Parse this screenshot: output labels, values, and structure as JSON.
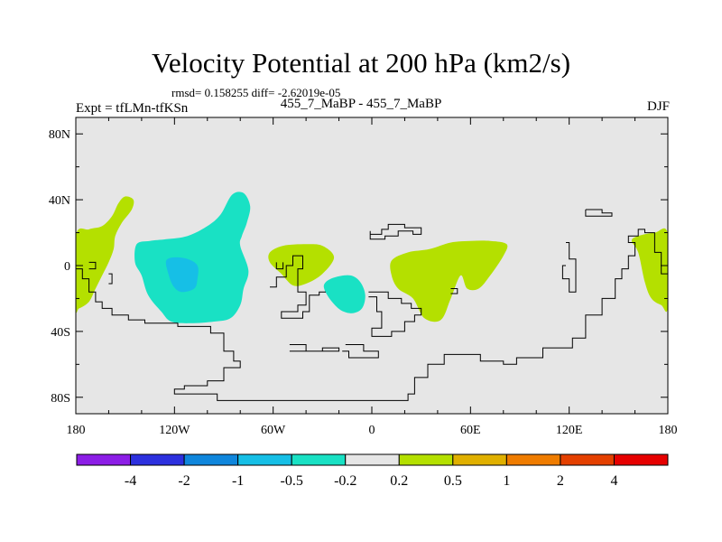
{
  "chart_data": {
    "type": "contour-map",
    "title": "Velocity Potential at 200 hPa (km2/s)",
    "stats_text": "rmsd= 0.158255 diff= -2.62019e-05",
    "left_label": "Expt = tfLMn-tfKSn",
    "center_label": "455_7_MaBP - 455_7_MaBP",
    "right_label": "DJF",
    "x_axis": {
      "range": [
        -180,
        180
      ],
      "ticks": [
        -180,
        -120,
        -60,
        0,
        60,
        120,
        180
      ],
      "tick_labels": [
        "180",
        "120W",
        "60W",
        "0",
        "60E",
        "120E",
        "180"
      ]
    },
    "y_axis": {
      "range": [
        -90,
        90
      ],
      "ticks": [
        80,
        40,
        0,
        -40,
        -80
      ],
      "tick_labels": [
        "80N",
        "40N",
        "0",
        "40S",
        "80S"
      ]
    },
    "colorbar": {
      "colors": [
        "#8c1ee6",
        "#2d30de",
        "#0f86dc",
        "#16bfe6",
        "#19e1c4",
        "#e6e6e6",
        "#b4e000",
        "#e0b000",
        "#ef7c00",
        "#e44000",
        "#e60000"
      ],
      "labels": [
        "-4",
        "-2",
        "-1",
        "-0.5",
        "-0.2",
        "0.2",
        "0.5",
        "1",
        "2",
        "4"
      ]
    },
    "background_color": "#e6e6e6",
    "regions": [
      {
        "level": "0.2 to 0.5",
        "color": "#b4e000",
        "points": [
          [
            -180,
            18
          ],
          [
            -172,
            22
          ],
          [
            -164,
            24
          ],
          [
            -158,
            30
          ],
          [
            -154,
            38
          ],
          [
            -150,
            42
          ],
          [
            -145,
            40
          ],
          [
            -146,
            34
          ],
          [
            -152,
            26
          ],
          [
            -156,
            18
          ],
          [
            -157,
            10
          ],
          [
            -160,
            2
          ],
          [
            -164,
            -6
          ],
          [
            -168,
            -14
          ],
          [
            -172,
            -22
          ],
          [
            -178,
            -26
          ],
          [
            -180,
            -25
          ]
        ]
      },
      {
        "level": "0.2 to 0.5",
        "color": "#b4e000",
        "points": [
          [
            -62,
            8
          ],
          [
            -54,
            12
          ],
          [
            -40,
            13
          ],
          [
            -30,
            12
          ],
          [
            -23,
            5
          ],
          [
            -30,
            -5
          ],
          [
            -40,
            -11
          ],
          [
            -48,
            -12
          ],
          [
            -55,
            -5
          ],
          [
            -62,
            2
          ]
        ]
      },
      {
        "level": "0.2 to 0.5",
        "color": "#b4e000",
        "points": [
          [
            12,
            3
          ],
          [
            22,
            8
          ],
          [
            35,
            10
          ],
          [
            48,
            14
          ],
          [
            60,
            15
          ],
          [
            72,
            15
          ],
          [
            82,
            13
          ],
          [
            80,
            6
          ],
          [
            72,
            -6
          ],
          [
            65,
            -14
          ],
          [
            58,
            -14
          ],
          [
            54,
            -6
          ],
          [
            48,
            -20
          ],
          [
            42,
            -33
          ],
          [
            32,
            -32
          ],
          [
            25,
            -20
          ],
          [
            16,
            -14
          ],
          [
            12,
            -6
          ]
        ]
      },
      {
        "level": "0.2 to 0.5",
        "color": "#b4e000",
        "points": [
          [
            180,
            19
          ],
          [
            172,
            20
          ],
          [
            162,
            18
          ],
          [
            158,
            15
          ],
          [
            162,
            8
          ],
          [
            166,
            -10
          ],
          [
            170,
            -20
          ],
          [
            176,
            -24
          ],
          [
            180,
            -25
          ]
        ]
      },
      {
        "level": "-0.5 to -0.2",
        "color": "#19e1c4",
        "points": [
          [
            -143,
            13
          ],
          [
            -135,
            15
          ],
          [
            -125,
            16
          ],
          [
            -112,
            18
          ],
          [
            -100,
            24
          ],
          [
            -92,
            31
          ],
          [
            -85,
            43
          ],
          [
            -78,
            44
          ],
          [
            -74,
            36
          ],
          [
            -76,
            26
          ],
          [
            -79,
            18
          ],
          [
            -80,
            12
          ],
          [
            -75,
            -3
          ],
          [
            -78,
            -14
          ],
          [
            -80,
            -24
          ],
          [
            -86,
            -32
          ],
          [
            -96,
            -34
          ],
          [
            -110,
            -35
          ],
          [
            -122,
            -34
          ],
          [
            -128,
            -28
          ],
          [
            -136,
            -18
          ],
          [
            -140,
            -6
          ],
          [
            -144,
            2
          ]
        ]
      },
      {
        "level": "-1 to -0.5",
        "color": "#16bfe6",
        "points": [
          [
            -125,
            3
          ],
          [
            -120,
            5
          ],
          [
            -112,
            4
          ],
          [
            -106,
            0
          ],
          [
            -106,
            -8
          ],
          [
            -108,
            -14
          ],
          [
            -116,
            -16
          ],
          [
            -121,
            -12
          ],
          [
            -124,
            -4
          ]
        ]
      },
      {
        "level": "-0.5 to -0.2",
        "color": "#19e1c4",
        "points": [
          [
            -28,
            -10
          ],
          [
            -22,
            -7
          ],
          [
            -13,
            -6
          ],
          [
            -7,
            -10
          ],
          [
            -4,
            -18
          ],
          [
            -6,
            -26
          ],
          [
            -12,
            -29
          ],
          [
            -19,
            -27
          ],
          [
            -25,
            -21
          ],
          [
            -29,
            -14
          ]
        ]
      }
    ],
    "coastlines": [
      {
        "name": "africa-eurasia",
        "points": [
          [
            -1,
            21
          ],
          [
            -1,
            19
          ],
          [
            6,
            19
          ],
          [
            6,
            22
          ],
          [
            10,
            22
          ],
          [
            10,
            25
          ],
          [
            20,
            25
          ],
          [
            20,
            23
          ],
          [
            30,
            23
          ],
          [
            30,
            19
          ],
          [
            25,
            19
          ],
          [
            25,
            21
          ],
          [
            16,
            21
          ],
          [
            16,
            18
          ],
          [
            8,
            18
          ],
          [
            8,
            16
          ],
          [
            -1,
            16
          ],
          [
            -1,
            21
          ]
        ]
      },
      {
        "name": "south-america",
        "points": [
          [
            -62,
            -13
          ],
          [
            -58,
            -13
          ],
          [
            -58,
            -7
          ],
          [
            -52,
            -7
          ],
          [
            -52,
            0
          ],
          [
            -48,
            0
          ],
          [
            -48,
            6
          ],
          [
            -42,
            6
          ],
          [
            -42,
            -2
          ],
          [
            -45,
            -2
          ],
          [
            -45,
            -16
          ],
          [
            -40,
            -16
          ],
          [
            -40,
            -24
          ],
          [
            -45,
            -24
          ],
          [
            -45,
            -28
          ],
          [
            -55,
            -28
          ],
          [
            -55,
            -32
          ],
          [
            -42,
            -32
          ],
          [
            -42,
            -28
          ],
          [
            -38,
            -28
          ],
          [
            -38,
            -18
          ],
          [
            -32,
            -18
          ],
          [
            -32,
            -16
          ],
          [
            -28,
            -16
          ]
        ]
      },
      {
        "name": "africa",
        "points": [
          [
            -2,
            -16
          ],
          [
            10,
            -16
          ],
          [
            10,
            -20
          ],
          [
            18,
            -20
          ],
          [
            18,
            -23
          ],
          [
            24,
            -23
          ],
          [
            24,
            -26
          ],
          [
            30,
            -26
          ],
          [
            30,
            -30
          ],
          [
            26,
            -30
          ],
          [
            26,
            -34
          ],
          [
            20,
            -34
          ],
          [
            20,
            -40
          ],
          [
            12,
            -40
          ],
          [
            12,
            -43
          ],
          [
            0,
            -43
          ],
          [
            0,
            -38
          ],
          [
            6,
            -38
          ],
          [
            6,
            -28
          ],
          [
            3,
            -28
          ],
          [
            3,
            -19
          ],
          [
            -2,
            -19
          ]
        ]
      },
      {
        "name": "north-america-west",
        "points": [
          [
            -180,
            -2
          ],
          [
            -176,
            -2
          ],
          [
            -176,
            -8
          ],
          [
            -172,
            -8
          ],
          [
            -172,
            -16
          ],
          [
            -168,
            -16
          ],
          [
            -168,
            -22
          ],
          [
            -164,
            -22
          ],
          [
            -164,
            -26
          ],
          [
            -158,
            -26
          ],
          [
            -158,
            -30
          ],
          [
            -148,
            -30
          ],
          [
            -148,
            -33
          ],
          [
            -138,
            -33
          ],
          [
            -138,
            -35
          ],
          [
            -118,
            -35
          ],
          [
            -118,
            -37
          ],
          [
            -98,
            -37
          ],
          [
            -98,
            -41
          ],
          [
            -90,
            -41
          ],
          [
            -90,
            -52
          ],
          [
            -84,
            -52
          ],
          [
            -84,
            -58
          ],
          [
            -80,
            -58
          ],
          [
            -80,
            -62
          ],
          [
            -90,
            -62
          ],
          [
            -90,
            -70
          ],
          [
            -100,
            -70
          ],
          [
            -100,
            -73
          ],
          [
            -114,
            -73
          ],
          [
            -114,
            -75
          ],
          [
            -120,
            -75
          ],
          [
            -120,
            -78
          ],
          [
            -94,
            -78
          ],
          [
            -94,
            -82
          ],
          [
            22,
            -82
          ],
          [
            22,
            -78
          ],
          [
            26,
            -78
          ],
          [
            26,
            -68
          ],
          [
            34,
            -68
          ],
          [
            34,
            -60
          ],
          [
            44,
            -60
          ],
          [
            44,
            -54
          ],
          [
            66,
            -54
          ],
          [
            66,
            -58
          ],
          [
            80,
            -58
          ],
          [
            80,
            -60
          ],
          [
            88,
            -60
          ],
          [
            88,
            -56
          ],
          [
            104,
            -56
          ],
          [
            104,
            -50
          ],
          [
            122,
            -50
          ],
          [
            122,
            -44
          ],
          [
            130,
            -44
          ],
          [
            130,
            -30
          ],
          [
            140,
            -30
          ],
          [
            140,
            -20
          ],
          [
            148,
            -20
          ],
          [
            148,
            -8
          ],
          [
            152,
            -8
          ],
          [
            152,
            -2
          ],
          [
            156,
            -2
          ],
          [
            156,
            6
          ],
          [
            160,
            6
          ],
          [
            160,
            14
          ],
          [
            156,
            14
          ],
          [
            156,
            18
          ],
          [
            162,
            18
          ],
          [
            162,
            22
          ],
          [
            166,
            22
          ],
          [
            166,
            20
          ],
          [
            172,
            20
          ],
          [
            172,
            8
          ],
          [
            176,
            8
          ],
          [
            176,
            -5
          ],
          [
            180,
            -5
          ]
        ]
      },
      {
        "name": "caribbean",
        "points": [
          [
            -160,
            -5
          ],
          [
            -158,
            -5
          ],
          [
            -158,
            -11
          ],
          [
            -160,
            -11
          ]
        ]
      },
      {
        "name": "central-america",
        "points": [
          [
            -58,
            2
          ],
          [
            -58,
            -2
          ],
          [
            -54,
            -2
          ],
          [
            -54,
            2
          ]
        ]
      },
      {
        "name": "south-pacific-island",
        "points": [
          [
            -172,
            2
          ],
          [
            -168,
            2
          ],
          [
            -168,
            -2
          ],
          [
            -172,
            -2
          ]
        ]
      },
      {
        "name": "africa-east",
        "points": [
          [
            118,
            14
          ],
          [
            120,
            14
          ],
          [
            120,
            4
          ],
          [
            124,
            4
          ],
          [
            124,
            -16
          ],
          [
            120,
            -16
          ],
          [
            120,
            -8
          ],
          [
            116,
            -8
          ],
          [
            116,
            0
          ],
          [
            118,
            0
          ]
        ]
      },
      {
        "name": "japan",
        "points": [
          [
            130,
            34
          ],
          [
            140,
            34
          ],
          [
            140,
            32
          ],
          [
            146,
            32
          ],
          [
            146,
            30
          ],
          [
            130,
            30
          ],
          [
            130,
            34
          ]
        ]
      },
      {
        "name": "new-guinea",
        "points": [
          [
            48,
            -14
          ],
          [
            52,
            -14
          ],
          [
            52,
            -17
          ],
          [
            48,
            -17
          ]
        ]
      },
      {
        "name": "antarctica-piece-1",
        "points": [
          [
            -50,
            -48
          ],
          [
            -40,
            -48
          ],
          [
            -40,
            -52
          ],
          [
            -30,
            -52
          ],
          [
            -30,
            -50
          ],
          [
            -20,
            -50
          ],
          [
            -20,
            -52
          ],
          [
            -50,
            -52
          ]
        ]
      },
      {
        "name": "antarctica-piece-2",
        "points": [
          [
            -16,
            -48
          ],
          [
            -5,
            -48
          ],
          [
            -5,
            -52
          ],
          [
            4,
            -52
          ],
          [
            4,
            -56
          ],
          [
            -14,
            -56
          ],
          [
            -14,
            -52
          ],
          [
            -18,
            -52
          ]
        ]
      }
    ]
  }
}
